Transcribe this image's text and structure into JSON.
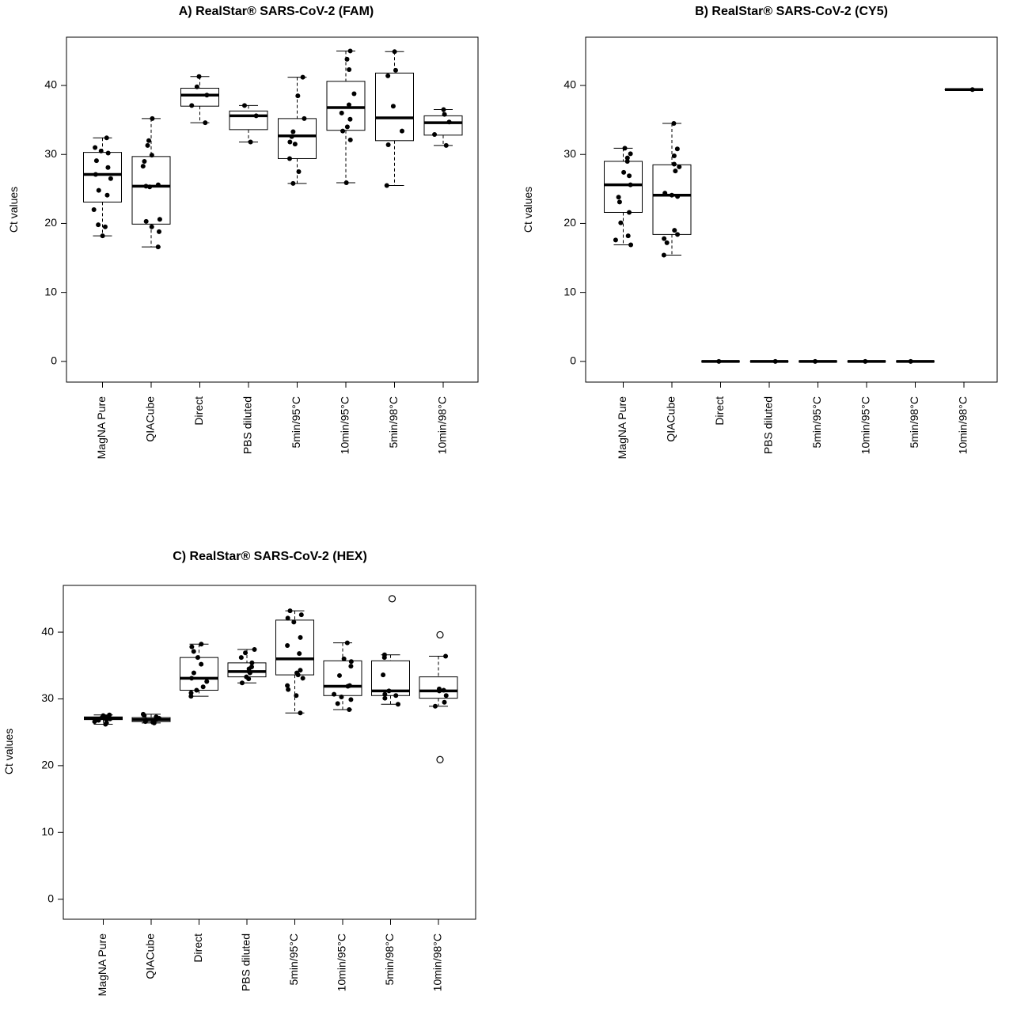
{
  "chart_data": [
    {
      "type": "box",
      "title": "A) RealStar® SARS-CoV-2 (FAM)",
      "ylabel": "Ct values",
      "ylim": [
        -3,
        47
      ],
      "yticks": [
        0,
        10,
        20,
        30,
        40
      ],
      "categories": [
        "MagNA Pure",
        "QIACube",
        "Direct",
        "PBS diluted",
        "5min/95°C",
        "10min/95°C",
        "5min/98°C",
        "10min/98°C"
      ],
      "boxes": [
        {
          "whislo": 18.2,
          "q1": 23.1,
          "med": 27.1,
          "q3": 30.3,
          "whishi": 32.4
        },
        {
          "whislo": 16.6,
          "q1": 19.9,
          "med": 25.4,
          "q3": 29.7,
          "whishi": 35.2
        },
        {
          "whislo": 34.6,
          "q1": 37.0,
          "med": 38.6,
          "q3": 39.6,
          "whishi": 41.3
        },
        {
          "whislo": 31.8,
          "q1": 33.6,
          "med": 35.6,
          "q3": 36.3,
          "whishi": 37.1
        },
        {
          "whislo": 25.8,
          "q1": 29.4,
          "med": 32.7,
          "q3": 35.2,
          "whishi": 41.2
        },
        {
          "whislo": 25.9,
          "q1": 33.5,
          "med": 36.8,
          "q3": 40.6,
          "whishi": 45.0
        },
        {
          "whislo": 25.5,
          "q1": 32.0,
          "med": 35.3,
          "q3": 41.8,
          "whishi": 44.9
        },
        {
          "whislo": 31.3,
          "q1": 32.8,
          "med": 34.6,
          "q3": 35.6,
          "whishi": 36.5
        }
      ],
      "points": [
        [
          32.4,
          31.0,
          30.5,
          30.2,
          29.1,
          28.1,
          27.1,
          26.5,
          24.8,
          24.1,
          22.0,
          19.8,
          19.5,
          18.2
        ],
        [
          35.2,
          32.0,
          31.3,
          29.9,
          29.0,
          28.3,
          25.6,
          25.4,
          25.3,
          20.6,
          20.3,
          19.5,
          18.8,
          16.6
        ],
        [
          41.3,
          39.8,
          38.6,
          37.1,
          34.6
        ],
        [
          37.1,
          35.6,
          31.8
        ],
        [
          41.2,
          38.5,
          35.2,
          33.3,
          32.6,
          31.8,
          31.5,
          29.4,
          27.5,
          25.8
        ],
        [
          45.0,
          43.8,
          42.3,
          38.8,
          37.2,
          36.0,
          35.1,
          34.0,
          33.4,
          32.1,
          25.9
        ],
        [
          44.9,
          42.2,
          41.4,
          37.0,
          33.4,
          31.4,
          25.5
        ],
        [
          36.5,
          35.8,
          34.7,
          32.9,
          31.3
        ]
      ],
      "outliers": [
        [],
        [],
        [],
        [],
        [],
        [],
        [],
        []
      ]
    },
    {
      "type": "box",
      "title": "B) RealStar® SARS-CoV-2 (CY5)",
      "ylabel": "Ct values",
      "ylim": [
        -3,
        47
      ],
      "yticks": [
        0,
        10,
        20,
        30,
        40
      ],
      "categories": [
        "MagNA Pure",
        "QIACube",
        "Direct",
        "PBS diluted",
        "5min/95°C",
        "10min/95°C",
        "5min/98°C",
        "10min/98°C"
      ],
      "boxes": [
        {
          "whislo": 16.9,
          "q1": 21.6,
          "med": 25.6,
          "q3": 29.0,
          "whishi": 30.9
        },
        {
          "whislo": 15.4,
          "q1": 18.4,
          "med": 24.1,
          "q3": 28.5,
          "whishi": 34.5
        },
        {
          "whislo": 0,
          "q1": 0,
          "med": 0,
          "q3": 0,
          "whishi": 0
        },
        {
          "whislo": 0,
          "q1": 0,
          "med": 0,
          "q3": 0,
          "whishi": 0
        },
        {
          "whislo": 0,
          "q1": 0,
          "med": 0,
          "q3": 0,
          "whishi": 0
        },
        {
          "whislo": 0,
          "q1": 0,
          "med": 0,
          "q3": 0,
          "whishi": 0
        },
        {
          "whislo": 0,
          "q1": 0,
          "med": 0,
          "q3": 0,
          "whishi": 0
        },
        {
          "whislo": 39.4,
          "q1": 39.4,
          "med": 39.4,
          "q3": 39.4,
          "whishi": 39.4
        }
      ],
      "points": [
        [
          30.9,
          30.1,
          29.5,
          29.0,
          27.4,
          26.9,
          25.6,
          23.8,
          23.1,
          21.6,
          20.1,
          18.2,
          17.6,
          16.9
        ],
        [
          34.5,
          30.8,
          29.8,
          28.6,
          28.2,
          27.6,
          24.4,
          24.1,
          23.9,
          19.0,
          18.4,
          17.8,
          17.2,
          15.4
        ],
        [
          0
        ],
        [
          0
        ],
        [
          0
        ],
        [
          0
        ],
        [
          0
        ],
        [
          39.4
        ]
      ],
      "outliers": [
        [],
        [],
        [],
        [],
        [],
        [],
        [],
        []
      ]
    },
    {
      "type": "box",
      "title": "C) RealStar® SARS-CoV-2 (HEX)",
      "ylabel": "Ct values",
      "ylim": [
        -3,
        47
      ],
      "yticks": [
        0,
        10,
        20,
        30,
        40
      ],
      "categories": [
        "MagNA Pure",
        "QIACube",
        "Direct",
        "PBS diluted",
        "5min/95°C",
        "10min/95°C",
        "5min/98°C",
        "10min/98°C"
      ],
      "boxes": [
        {
          "whislo": 26.2,
          "q1": 26.9,
          "med": 27.1,
          "q3": 27.3,
          "whishi": 27.6
        },
        {
          "whislo": 26.4,
          "q1": 26.6,
          "med": 26.9,
          "q3": 27.2,
          "whishi": 27.7
        },
        {
          "whislo": 30.4,
          "q1": 31.3,
          "med": 33.1,
          "q3": 36.2,
          "whishi": 38.2
        },
        {
          "whislo": 32.4,
          "q1": 33.3,
          "med": 34.1,
          "q3": 35.4,
          "whishi": 37.4
        },
        {
          "whislo": 27.9,
          "q1": 33.6,
          "med": 36.0,
          "q3": 41.8,
          "whishi": 43.2
        },
        {
          "whislo": 28.4,
          "q1": 30.5,
          "med": 31.9,
          "q3": 35.7,
          "whishi": 38.4
        },
        {
          "whislo": 29.2,
          "q1": 30.5,
          "med": 31.2,
          "q3": 35.7,
          "whishi": 36.6
        },
        {
          "whislo": 28.9,
          "q1": 30.1,
          "med": 31.2,
          "q3": 33.3,
          "whishi": 36.4
        }
      ],
      "points": [
        [
          27.6,
          27.5,
          27.3,
          27.2,
          27.1,
          27.0,
          26.9,
          26.8,
          26.6,
          26.4,
          26.2
        ],
        [
          27.7,
          27.5,
          27.3,
          27.1,
          26.9,
          26.8,
          26.6,
          26.5,
          26.4
        ],
        [
          38.2,
          37.8,
          37.1,
          36.2,
          35.2,
          33.9,
          33.1,
          32.6,
          31.8,
          31.3,
          30.9,
          30.4
        ],
        [
          37.4,
          36.9,
          36.2,
          35.4,
          34.8,
          34.5,
          34.1,
          33.9,
          33.3,
          33.0,
          32.4
        ],
        [
          43.2,
          42.6,
          42.1,
          41.5,
          39.2,
          38.0,
          36.8,
          34.3,
          33.9,
          33.6,
          33.1,
          32.0,
          31.4,
          30.5,
          27.9
        ],
        [
          38.4,
          36.0,
          35.6,
          34.9,
          33.5,
          32.0,
          31.9,
          30.7,
          30.3,
          29.9,
          29.3,
          28.4
        ],
        [
          36.6,
          36.2,
          33.6,
          31.2,
          30.7,
          30.5,
          30.1,
          29.2
        ],
        [
          36.4,
          31.5,
          31.3,
          31.2,
          30.5,
          29.5,
          28.9
        ]
      ],
      "outliers": [
        [],
        [],
        [],
        [],
        [],
        [],
        [
          45.0
        ],
        [
          39.6,
          20.9
        ]
      ]
    }
  ]
}
